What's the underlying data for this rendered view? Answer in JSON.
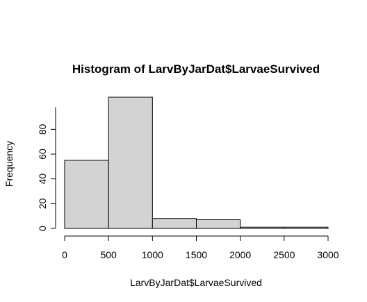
{
  "chart_data": {
    "type": "bar",
    "title": "Histogram of LarvByJarDat$LarvaeSurvived",
    "xlabel": "LarvByJarDat$LarvaeSurvived",
    "ylabel": "Frequency",
    "bins": [
      {
        "start": 0,
        "end": 500,
        "count": 55
      },
      {
        "start": 500,
        "end": 1000,
        "count": 106
      },
      {
        "start": 1000,
        "end": 1500,
        "count": 8
      },
      {
        "start": 1500,
        "end": 2000,
        "count": 7
      },
      {
        "start": 2000,
        "end": 2500,
        "count": 1
      },
      {
        "start": 2500,
        "end": 3000,
        "count": 1
      }
    ],
    "xticks": [
      0,
      500,
      1000,
      1500,
      2000,
      2500,
      3000
    ],
    "yticks": [
      0,
      20,
      40,
      60,
      80
    ],
    "xlim": [
      0,
      3000
    ],
    "ylim": [
      0,
      106
    ],
    "bar_color": "#d3d3d3",
    "grid": false
  }
}
